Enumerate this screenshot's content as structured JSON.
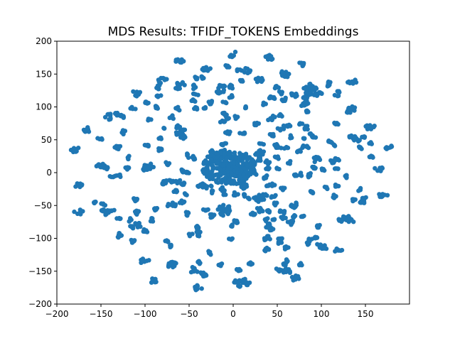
{
  "chart_data": {
    "type": "scatter",
    "title": "MDS Results: TFIDF_TOKENS Embeddings",
    "xlabel": "",
    "ylabel": "",
    "xlim": [
      -200,
      200
    ],
    "ylim": [
      -200,
      200
    ],
    "xticks": [
      -200,
      -150,
      -100,
      -50,
      0,
      50,
      100,
      150
    ],
    "yticks": [
      -200,
      -150,
      -100,
      -50,
      0,
      50,
      100,
      150,
      200
    ],
    "xtick_labels": [
      "−200",
      "−150",
      "−100",
      "−50",
      "0",
      "50",
      "100",
      "150"
    ],
    "ytick_labels": [
      "−200",
      "−150",
      "−100",
      "−50",
      "0",
      "50",
      "100",
      "150",
      "200"
    ],
    "grid": false,
    "marker_color": "#1f77b4",
    "clusters": [
      {
        "x": 0,
        "y": 180
      },
      {
        "x": 40,
        "y": 175
      },
      {
        "x": -60,
        "y": 170
      },
      {
        "x": 80,
        "y": 165
      },
      {
        "x": -30,
        "y": 158
      },
      {
        "x": 15,
        "y": 155
      },
      {
        "x": -80,
        "y": 140
      },
      {
        "x": 60,
        "y": 150
      },
      {
        "x": 110,
        "y": 135
      },
      {
        "x": 135,
        "y": 138
      },
      {
        "x": -110,
        "y": 120
      },
      {
        "x": 120,
        "y": 120
      },
      {
        "x": -60,
        "y": 135
      },
      {
        "x": 30,
        "y": 140
      },
      {
        "x": -15,
        "y": 125
      },
      {
        "x": -140,
        "y": 85
      },
      {
        "x": 135,
        "y": 98
      },
      {
        "x": -165,
        "y": 65
      },
      {
        "x": 155,
        "y": 70
      },
      {
        "x": -180,
        "y": 35
      },
      {
        "x": 175,
        "y": 40
      },
      {
        "x": -175,
        "y": -18
      },
      {
        "x": 170,
        "y": -35
      },
      {
        "x": -175,
        "y": -60
      },
      {
        "x": 130,
        "y": -72,
        "r": 1.5
      },
      {
        "x": -145,
        "y": -60
      },
      {
        "x": -110,
        "y": -80
      },
      {
        "x": -130,
        "y": -95
      },
      {
        "x": 100,
        "y": -110
      },
      {
        "x": 120,
        "y": -118
      },
      {
        "x": -100,
        "y": -135
      },
      {
        "x": -90,
        "y": -165
      },
      {
        "x": -70,
        "y": -140
      },
      {
        "x": -45,
        "y": -148
      },
      {
        "x": -40,
        "y": -175
      },
      {
        "x": 10,
        "y": -167,
        "r": 1.6
      },
      {
        "x": 60,
        "y": -150
      },
      {
        "x": 70,
        "y": -160
      },
      {
        "x": -5,
        "y": 10,
        "r": 1.5
      },
      {
        "x": -10,
        "y": -55,
        "r": 1.4
      },
      {
        "x": 40,
        "y": -100
      },
      {
        "x": 90,
        "y": -100
      },
      {
        "x": -150,
        "y": 10
      },
      {
        "x": -130,
        "y": 40
      },
      {
        "x": 165,
        "y": 5
      },
      {
        "x": 140,
        "y": 50
      },
      {
        "x": 95,
        "y": 20
      },
      {
        "x": -95,
        "y": 10
      },
      {
        "x": -60,
        "y": 60
      },
      {
        "x": 60,
        "y": 70
      },
      {
        "x": 30,
        "y": 30
      },
      {
        "x": -30,
        "y": -20
      },
      {
        "x": 30,
        "y": -40
      },
      {
        "x": -70,
        "y": -50
      },
      {
        "x": 70,
        "y": -50
      }
    ]
  }
}
